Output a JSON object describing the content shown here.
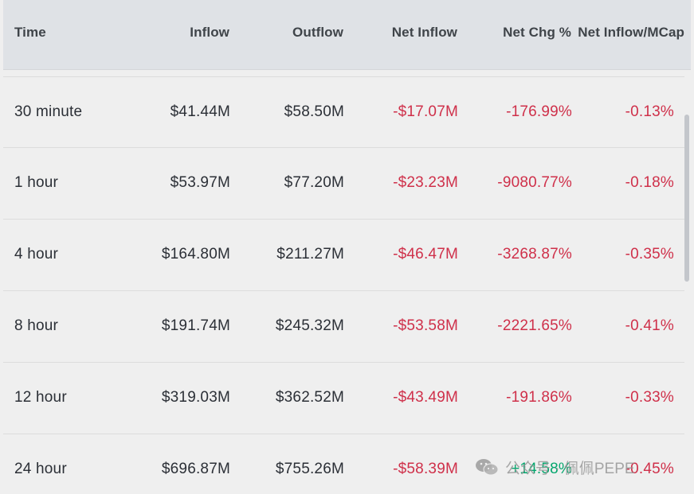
{
  "table": {
    "headers": [
      "Time",
      "Inflow",
      "Outflow",
      "Net Inflow",
      "Net Chg %",
      "Net Inflow/MCap"
    ],
    "rows": [
      {
        "time": "30 minute",
        "inflow": "$41.44M",
        "outflow": "$58.50M",
        "net_inflow": "-$17.07M",
        "net_chg": "-176.99%",
        "net_mcap": "-0.13%"
      },
      {
        "time": "1 hour",
        "inflow": "$53.97M",
        "outflow": "$77.20M",
        "net_inflow": "-$23.23M",
        "net_chg": "-9080.77%",
        "net_mcap": "-0.18%"
      },
      {
        "time": "4 hour",
        "inflow": "$164.80M",
        "outflow": "$211.27M",
        "net_inflow": "-$46.47M",
        "net_chg": "-3268.87%",
        "net_mcap": "-0.35%"
      },
      {
        "time": "8 hour",
        "inflow": "$191.74M",
        "outflow": "$245.32M",
        "net_inflow": "-$53.58M",
        "net_chg": "-2221.65%",
        "net_mcap": "-0.41%"
      },
      {
        "time": "12 hour",
        "inflow": "$319.03M",
        "outflow": "$362.52M",
        "net_inflow": "-$43.49M",
        "net_chg": "-191.86%",
        "net_mcap": "-0.33%"
      },
      {
        "time": "24 hour",
        "inflow": "$696.87M",
        "outflow": "$755.26M",
        "net_inflow": "-$58.39M",
        "net_chg": "+14.58%",
        "net_mcap": "-0.45%"
      }
    ]
  },
  "colors": {
    "negative": "#cf304a",
    "positive": "#03a66d",
    "header_bg": "#dfe2e6",
    "row_bg": "#efefef"
  },
  "watermark": {
    "icon": "wechat-icon",
    "text": "公众号 · 佩佩PEPE"
  }
}
